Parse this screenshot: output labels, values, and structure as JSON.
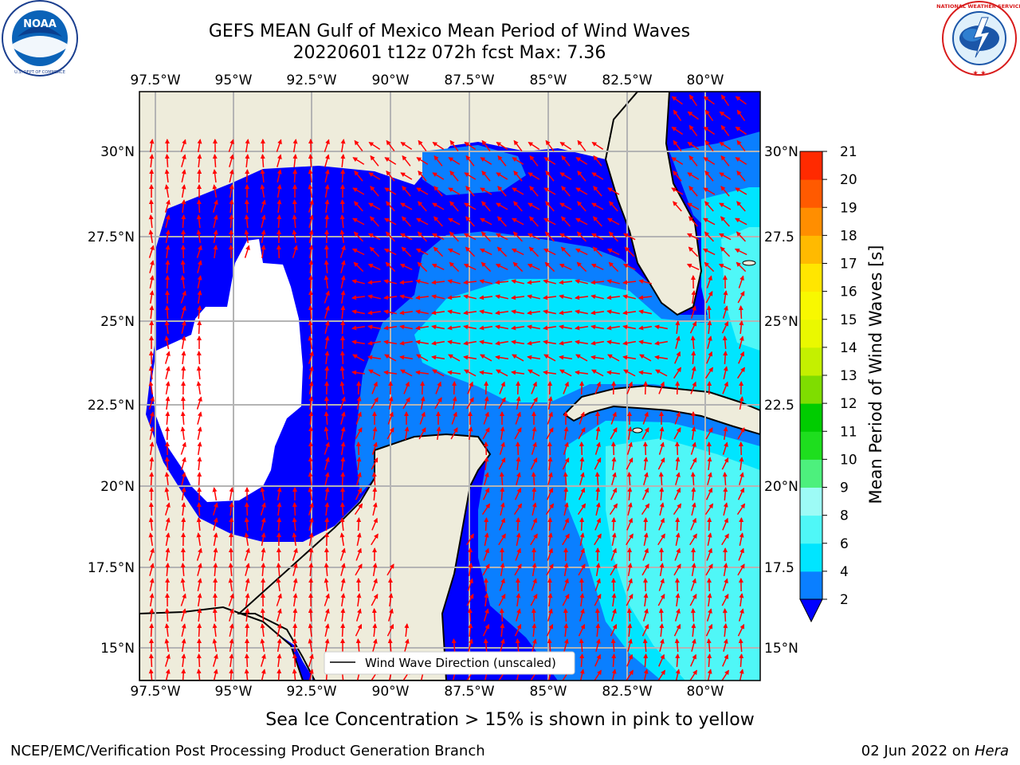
{
  "title": {
    "line1": "GEFS MEAN Gulf of Mexico Mean Period of Wind Waves",
    "line2": "20220601 t12z 072h fcst   Max: 7.36"
  },
  "logos": {
    "noaa": {
      "text": "NOAA",
      "ring_text": "NATIONAL OCEANIC AND ATMOSPHERIC ADMINISTRATION · U.S. DEPARTMENT OF COMMERCE"
    },
    "nws": {
      "ring_text": "NATIONAL WEATHER SERVICE"
    }
  },
  "map": {
    "lon_labels": [
      "97.5°W",
      "95°W",
      "92.5°W",
      "90°W",
      "87.5°W",
      "85°W",
      "82.5°W",
      "80°W"
    ],
    "lat_labels_left": [
      "30°N",
      "27.5°N",
      "25°N",
      "22.5°N",
      "20°N",
      "17.5°N",
      "15°N"
    ],
    "lat_labels_right": [
      "30°N",
      "27.5",
      "25°N",
      "22.5",
      "20°N",
      "17.5",
      "15°N"
    ],
    "legend_label": "Wind Wave Direction (unscaled)",
    "colors": {
      "land": "#eeecdb",
      "ocean_low": "#0000ff",
      "ocean_2_4": "#0a7fff",
      "ocean_4_6": "#00e5ff",
      "ocean_6_8": "#4ff7f7",
      "arrow": "#ff0000",
      "coast": "#000000",
      "grid": "#b4b4b4"
    }
  },
  "colorbar": {
    "label": "Mean Period of Wind Waves [s]",
    "ticks": [
      "2",
      "4",
      "6",
      "8",
      "9",
      "10",
      "11",
      "12",
      "13",
      "14",
      "15",
      "16",
      "17",
      "18",
      "19",
      "20",
      "21"
    ],
    "colors": [
      "#0a7fff",
      "#00e5ff",
      "#4ff7f7",
      "#9dfbf6",
      "#4df07d",
      "#1ede1e",
      "#00cc00",
      "#7fdd00",
      "#c4f000",
      "#eaf800",
      "#f8f800",
      "#ffe600",
      "#ffba00",
      "#ff8e00",
      "#ff5a00",
      "#ff2a00"
    ],
    "under_color": "#0000ff"
  },
  "footer": {
    "subtitle": "Sea Ice Concentration > 15% is shown in pink to yellow",
    "credit": "NCEP/EMC/Verification Post Processing Product Generation Branch",
    "date": "02 Jun 2022 on ",
    "host": "Hera"
  }
}
